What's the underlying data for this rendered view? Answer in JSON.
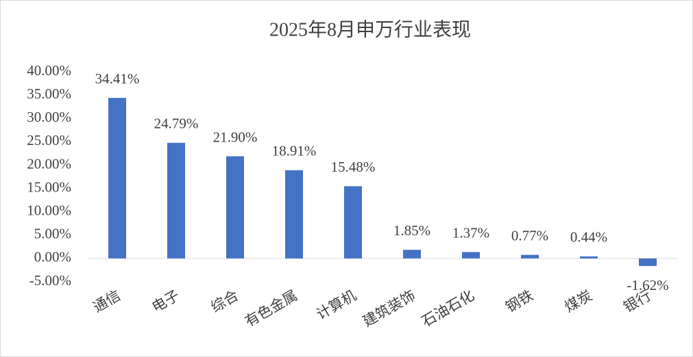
{
  "chart_data": {
    "type": "bar",
    "title": "2025年8月申万行业表现",
    "categories": [
      "通信",
      "电子",
      "综合",
      "有色金属",
      "计算机",
      "建筑装饰",
      "石油石化",
      "钢铁",
      "煤炭",
      "银行"
    ],
    "values": [
      34.41,
      24.79,
      21.9,
      18.91,
      15.48,
      1.85,
      1.37,
      0.77,
      0.44,
      -1.62
    ],
    "value_labels": [
      "34.41%",
      "24.79%",
      "21.90%",
      "18.91%",
      "15.48%",
      "1.85%",
      "1.37%",
      "0.77%",
      "0.44%",
      "-1.62%"
    ],
    "color": "#4472c4",
    "ylim": [
      -5,
      40
    ],
    "yticks": [
      {
        "value": -5,
        "label": "-5.00%"
      },
      {
        "value": 0,
        "label": "0.00%"
      },
      {
        "value": 5,
        "label": "5.00%"
      },
      {
        "value": 10,
        "label": "10.00%"
      },
      {
        "value": 15,
        "label": "15.00%"
      },
      {
        "value": 20,
        "label": "20.00%"
      },
      {
        "value": 25,
        "label": "25.00%"
      },
      {
        "value": 30,
        "label": "30.00%"
      },
      {
        "value": 35,
        "label": "35.00%"
      },
      {
        "value": 40,
        "label": "40.00%"
      }
    ],
    "grid": false
  }
}
